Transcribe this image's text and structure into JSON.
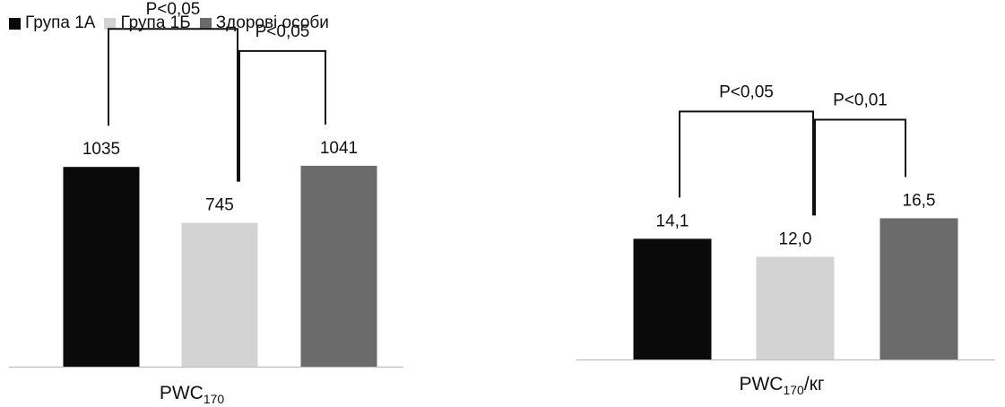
{
  "legend": [
    {
      "label": "Група 1А",
      "color": "#0a0a0a"
    },
    {
      "label": "Група 1Б",
      "color": "#d3d3d3"
    },
    {
      "label": "Здорові особи",
      "color": "#6b6b6b"
    }
  ],
  "chart_data": [
    {
      "type": "bar",
      "categories": [
        "Група 1А",
        "Група 1Б",
        "Здорові особи"
      ],
      "values": [
        1035,
        745,
        1041
      ],
      "value_labels": [
        "1035",
        "745",
        "1041"
      ],
      "xlabel_main": "PWC",
      "xlabel_sub": "170",
      "xlabel_suffix": "",
      "ylim": [
        0,
        1900
      ],
      "grid": false,
      "annotations": [
        {
          "text": "P<0,05",
          "from": 0,
          "to": 1
        },
        {
          "text": "P<0,05",
          "from": 1,
          "to": 2
        }
      ]
    },
    {
      "type": "bar",
      "categories": [
        "Група 1А",
        "Група 1Б",
        "Здорові особи"
      ],
      "values": [
        14.1,
        12.0,
        16.5
      ],
      "value_labels": [
        "14,1",
        "12,0",
        "16,5"
      ],
      "xlabel_main": "PWC",
      "xlabel_sub": "170",
      "xlabel_suffix": "/кг",
      "ylim": [
        0,
        42
      ],
      "grid": false,
      "annotations": [
        {
          "text": "P<0,05",
          "from": 0,
          "to": 1
        },
        {
          "text": "P<0,01",
          "from": 1,
          "to": 2
        }
      ]
    }
  ]
}
